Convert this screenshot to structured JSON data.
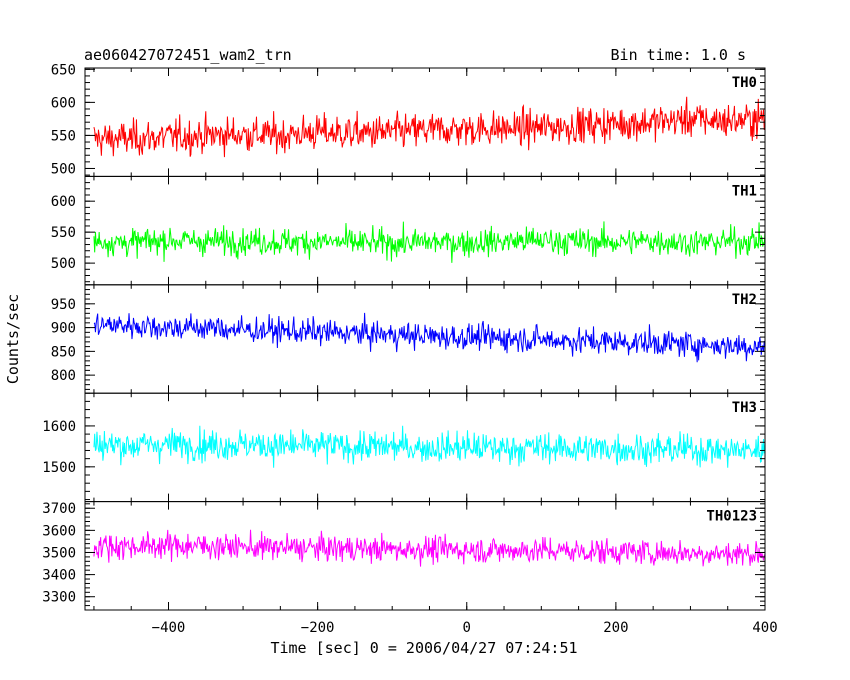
{
  "chart_data": {
    "type": "line",
    "title": "ae060427072451_wam2_trn",
    "bin_time_label": "Bin time: 1.0 s",
    "xlabel": "Time [sec] 0 = 2006/04/27 07:24:51",
    "ylabel": "Counts/sec",
    "xlim": [
      -512,
      400
    ],
    "x_ticks": [
      -400,
      -200,
      0,
      200,
      400
    ],
    "grid": false,
    "panels": [
      {
        "name": "TH0",
        "color": "#ff0000",
        "ylim": [
          488,
          652
        ],
        "y_ticks": [
          500,
          550,
          600,
          650
        ],
        "series": {
          "x": [
            -500,
            -450,
            -400,
            -350,
            -300,
            -250,
            -200,
            -150,
            -100,
            -50,
            0,
            50,
            100,
            150,
            200,
            250,
            300,
            350,
            400
          ],
          "values": [
            545,
            545,
            548,
            550,
            552,
            550,
            555,
            553,
            555,
            558,
            560,
            560,
            562,
            565,
            568,
            570,
            575,
            572,
            575
          ]
        },
        "noise": 34
      },
      {
        "name": "TH1",
        "color": "#00ff00",
        "ylim": [
          465,
          640
        ],
        "y_ticks": [
          500,
          550,
          600
        ],
        "series": {
          "x": [
            -500,
            -450,
            -400,
            -350,
            -300,
            -250,
            -200,
            -150,
            -100,
            -50,
            0,
            50,
            100,
            150,
            200,
            250,
            300,
            350,
            400
          ],
          "values": [
            535,
            533,
            537,
            535,
            536,
            534,
            535,
            533,
            532,
            534,
            533,
            535,
            537,
            535,
            534,
            536,
            533,
            535,
            537
          ]
        },
        "noise": 28
      },
      {
        "name": "TH2",
        "color": "#0000ff",
        "ylim": [
          762,
          990
        ],
        "y_ticks": [
          800,
          850,
          900,
          950
        ],
        "series": {
          "x": [
            -500,
            -450,
            -400,
            -350,
            -300,
            -250,
            -200,
            -150,
            -100,
            -50,
            0,
            50,
            100,
            150,
            200,
            250,
            300,
            350,
            400
          ],
          "values": [
            905,
            905,
            900,
            900,
            895,
            893,
            890,
            888,
            885,
            882,
            880,
            878,
            875,
            872,
            870,
            868,
            865,
            862,
            860
          ]
        },
        "noise": 35
      },
      {
        "name": "TH3",
        "color": "#00ffff",
        "ylim": [
          1415,
          1680
        ],
        "y_ticks": [
          1500,
          1600
        ],
        "series": {
          "x": [
            -500,
            -450,
            -400,
            -350,
            -300,
            -250,
            -200,
            -150,
            -100,
            -50,
            0,
            50,
            100,
            150,
            200,
            250,
            300,
            350,
            400
          ],
          "values": [
            1555,
            1552,
            1556,
            1553,
            1555,
            1550,
            1552,
            1548,
            1550,
            1546,
            1548,
            1545,
            1547,
            1544,
            1545,
            1542,
            1543,
            1540,
            1541
          ]
        },
        "noise": 48
      },
      {
        "name": "TH0123",
        "color": "#ff00ff",
        "ylim": [
          3240,
          3730
        ],
        "y_ticks": [
          3300,
          3400,
          3500,
          3600,
          3700
        ],
        "series": {
          "x": [
            -500,
            -450,
            -400,
            -350,
            -300,
            -250,
            -200,
            -150,
            -100,
            -50,
            0,
            50,
            100,
            150,
            200,
            250,
            300,
            350,
            400
          ],
          "values": [
            3530,
            3528,
            3532,
            3530,
            3525,
            3522,
            3520,
            3518,
            3515,
            3515,
            3512,
            3510,
            3510,
            3505,
            3505,
            3500,
            3498,
            3495,
            3495
          ]
        },
        "noise": 75
      }
    ]
  }
}
